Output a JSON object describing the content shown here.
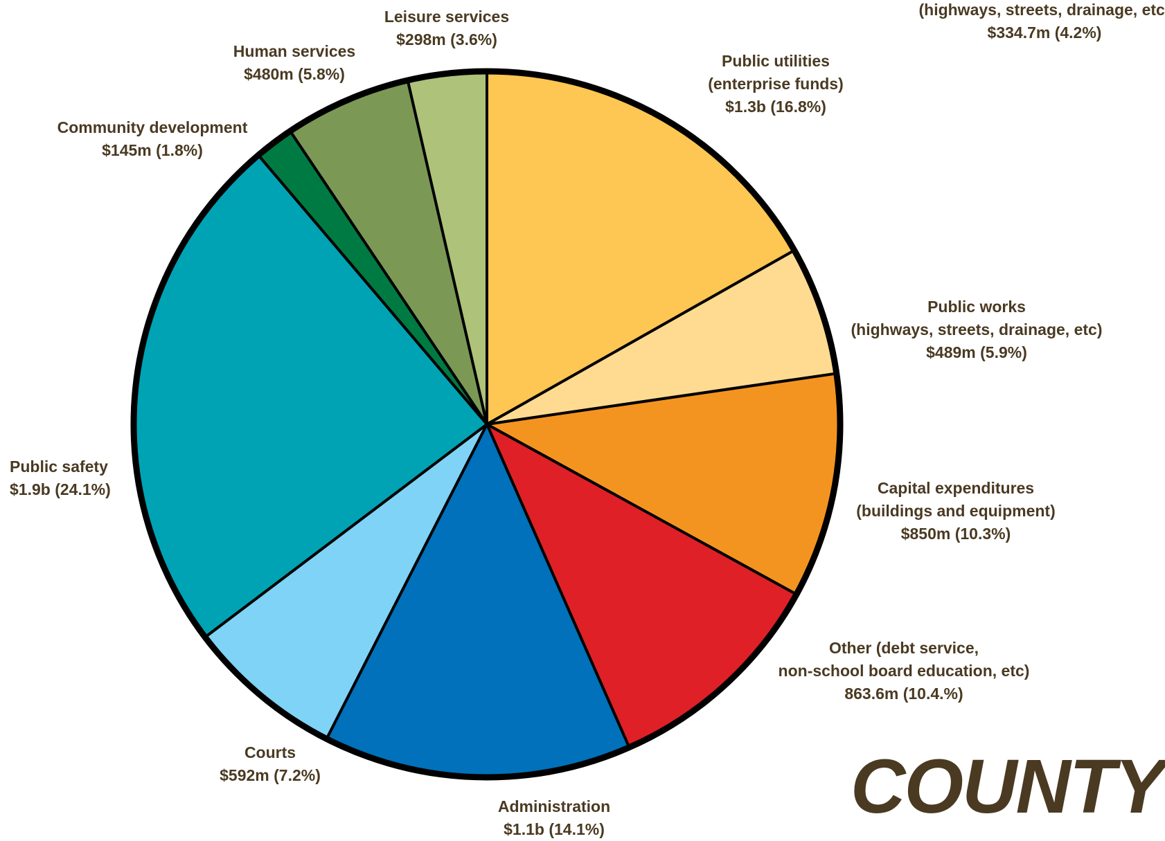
{
  "chart_data": {
    "type": "pie",
    "title": "COUNTY",
    "start_angle_deg": 0,
    "direction": "clockwise",
    "slices": [
      {
        "name": "Public utilities (enterprise funds)",
        "lines": [
          "Public utilities",
          "(enterprise funds)",
          "$1.3b (16.8%)"
        ],
        "amount": "$1.3b",
        "percent": 16.8,
        "color": "#fec652"
      },
      {
        "name": "Public works (highways, streets, drainage, etc)",
        "lines": [
          "Public works",
          "(highways, streets, drainage, etc)",
          "$489m (5.9%)"
        ],
        "amount": "$489m",
        "percent": 5.9,
        "color": "#fedb91"
      },
      {
        "name": "Capital expenditures (buildings and equipment)",
        "lines": [
          "Capital expenditures",
          "(buildings and equipment)",
          "$850m (10.3%)"
        ],
        "amount": "$850m",
        "percent": 10.3,
        "color": "#f49420"
      },
      {
        "name": "Other (debt service, non-school board education, etc)",
        "lines": [
          "Other (debt service,",
          "non-school board education, etc)",
          "863.6m (10.4.%)"
        ],
        "amount": "863.6m",
        "percent": 10.4,
        "color": "#df2027"
      },
      {
        "name": "Administration",
        "lines": [
          "Administration",
          "$1.1b (14.1%)"
        ],
        "amount": "$1.1b",
        "percent": 14.1,
        "color": "#0071ba"
      },
      {
        "name": "Courts",
        "lines": [
          "Courts",
          "$592m (7.2%)"
        ],
        "amount": "$592m",
        "percent": 7.2,
        "color": "#7fd3f6"
      },
      {
        "name": "Public safety",
        "lines": [
          "Public safety",
          "$1.9b (24.1%)"
        ],
        "amount": "$1.9b",
        "percent": 24.1,
        "color": "#00a3b4"
      },
      {
        "name": "Community development",
        "lines": [
          "Community development",
          "$145m (1.8%)"
        ],
        "amount": "$145m",
        "percent": 1.8,
        "color": "#007a43"
      },
      {
        "name": "Human services",
        "lines": [
          "Human services",
          "$480m (5.8%)"
        ],
        "amount": "$480m",
        "percent": 5.8,
        "color": "#7b9955"
      },
      {
        "name": "Leisure services",
        "lines": [
          "Leisure services",
          "$298m (3.6%)"
        ],
        "amount": "$298m",
        "percent": 3.6,
        "color": "#aec27a"
      }
    ],
    "extra_label": {
      "lines": [
        "(highways, streets, drainage, etc)",
        "$334.7m (4.2%)"
      ]
    }
  }
}
